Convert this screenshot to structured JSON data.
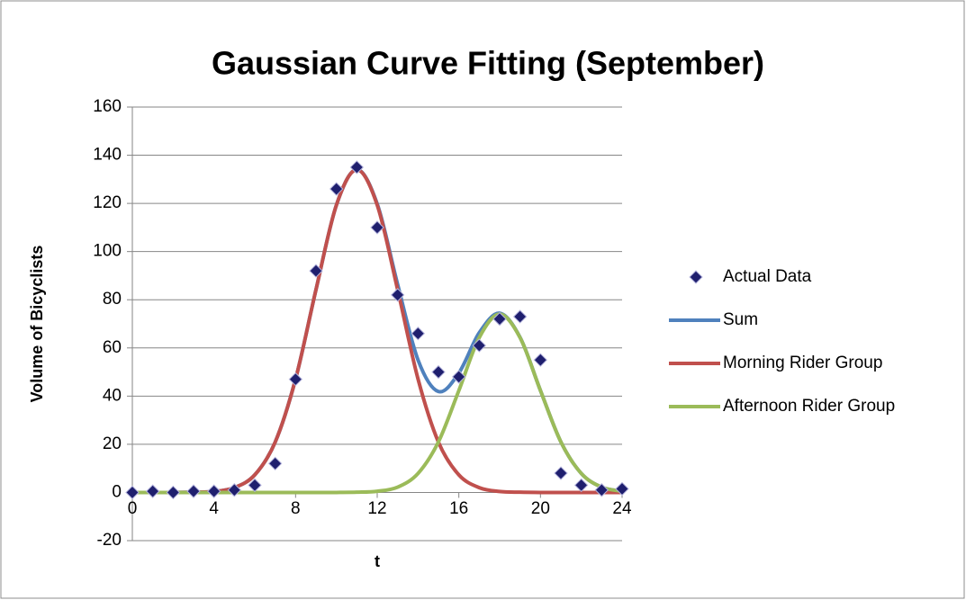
{
  "chart_data": {
    "type": "scatter",
    "title": "Gaussian Curve Fitting (September)",
    "x_label": "t",
    "y_label": "Volume of Bicyclists",
    "x": [
      0,
      1,
      2,
      3,
      4,
      5,
      6,
      7,
      8,
      9,
      10,
      11,
      12,
      13,
      14,
      15,
      16,
      17,
      18,
      19,
      20,
      21,
      22,
      23,
      24
    ],
    "series": [
      {
        "name": "Actual Data",
        "color": "#1f1f6e",
        "mode": "markers",
        "values": [
          0,
          0.5,
          0,
          0.5,
          0.5,
          1,
          3,
          12,
          47,
          92,
          126,
          135,
          110,
          82,
          66,
          50,
          48,
          61,
          72,
          73,
          55,
          8,
          3,
          1,
          1.5
        ]
      },
      {
        "name": "Sum",
        "color": "#4f81bd",
        "mode": "lines",
        "values": [
          0,
          0,
          0,
          0.1,
          0.4,
          2.0,
          7.3,
          20.9,
          47.1,
          84.2,
          119.3,
          134.1,
          119.8,
          86.4,
          55.0,
          41.9,
          49.6,
          66.3,
          74.4,
          64.4,
          42.3,
          21.0,
          7.9,
          2.2,
          0.5
        ]
      },
      {
        "name": "Morning Rider Group",
        "color": "#c0504d",
        "mode": "lines",
        "values": [
          0,
          0,
          0,
          0.1,
          0.4,
          2.0,
          7.3,
          20.9,
          47.1,
          84.2,
          119.3,
          134,
          119.3,
          84.2,
          47.1,
          20.9,
          7.3,
          2.0,
          0.4,
          0.1,
          0,
          0,
          0,
          0,
          0
        ]
      },
      {
        "name": "Afternoon Rider Group",
        "color": "#9bbb59",
        "mode": "lines",
        "values": [
          0,
          0,
          0,
          0,
          0,
          0,
          0,
          0,
          0,
          0,
          0,
          0.1,
          0.5,
          2.2,
          7.9,
          21.0,
          42.3,
          64.3,
          74,
          64.3,
          42.3,
          21.0,
          7.9,
          2.2,
          0.5
        ]
      }
    ],
    "xlim": [
      0,
      24
    ],
    "xticks": [
      0,
      4,
      8,
      12,
      16,
      20,
      24
    ],
    "ylim": [
      -20,
      160
    ],
    "yticks": [
      -20,
      0,
      20,
      40,
      60,
      80,
      100,
      120,
      140,
      160
    ],
    "grid": true,
    "legend": "right"
  }
}
